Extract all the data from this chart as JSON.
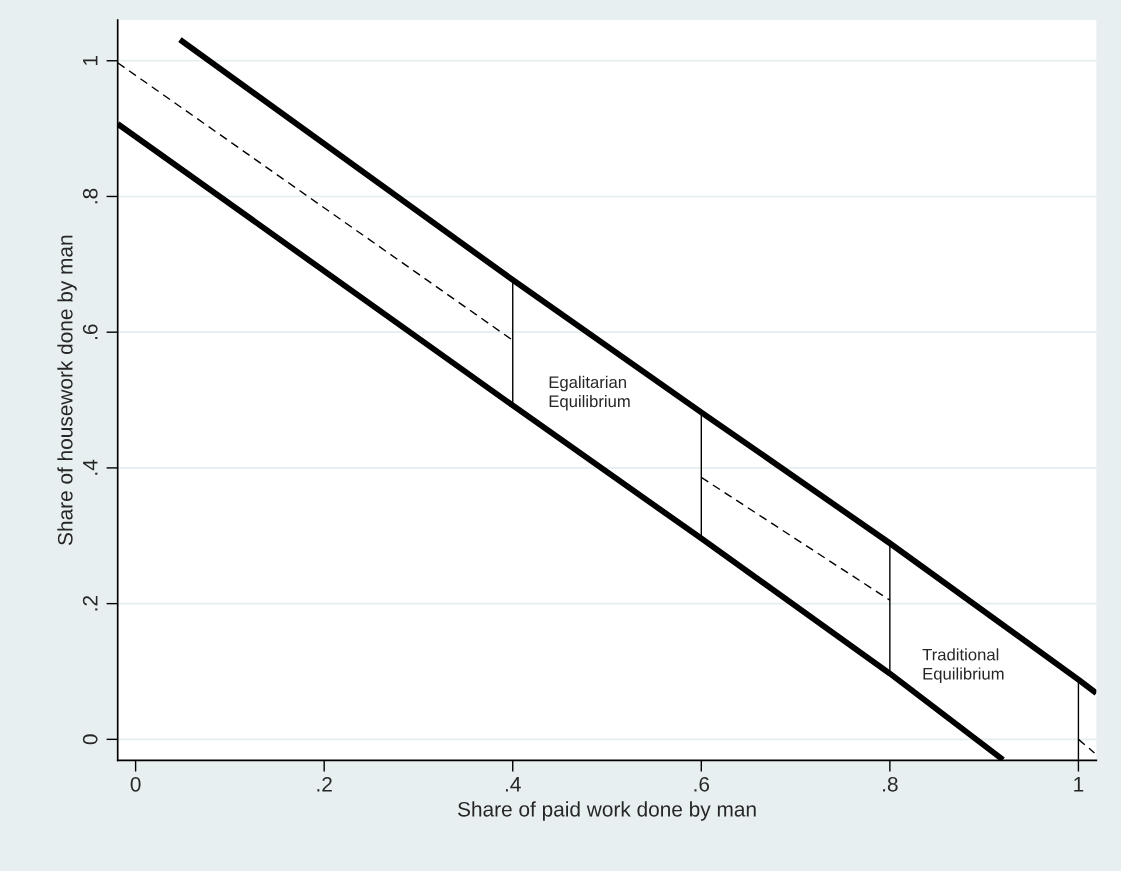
{
  "chart_data": {
    "type": "line",
    "xlabel": "Share of paid work done by man",
    "ylabel": "Share of housework done by man",
    "xlim": [
      -0.019,
      1.019
    ],
    "ylim": [
      -0.031,
      1.06
    ],
    "xticks": [
      {
        "value": 0,
        "label": "0"
      },
      {
        "value": 0.2,
        "label": ".2"
      },
      {
        "value": 0.4,
        "label": ".4"
      },
      {
        "value": 0.6,
        "label": ".6"
      },
      {
        "value": 0.8,
        "label": ".8"
      },
      {
        "value": 1,
        "label": "1"
      }
    ],
    "yticks": [
      {
        "value": 0,
        "label": "0"
      },
      {
        "value": 0.2,
        "label": ".2"
      },
      {
        "value": 0.4,
        "label": ".4"
      },
      {
        "value": 0.6,
        "label": ".6"
      },
      {
        "value": 0.8,
        "label": ".8"
      },
      {
        "value": 1,
        "label": "1"
      }
    ],
    "grid": "y",
    "marker": "none",
    "series": [
      {
        "color": "#000000",
        "line_style": "solid",
        "x": [
          0.047,
          0.4,
          0.6,
          0.8,
          1.0,
          1.019
        ],
        "values": [
          1.031,
          0.677,
          0.482,
          0.289,
          0.088,
          0.068
        ]
      },
      {
        "color": "#000000",
        "line_style": "solid",
        "x": [
          -0.019,
          0.4,
          0.6,
          0.8,
          0.92
        ],
        "values": [
          0.907,
          0.492,
          0.296,
          0.097,
          -0.03
        ]
      },
      {
        "color": "#000000",
        "line_style": "dashed",
        "x": [
          -0.019,
          0.4
        ],
        "values": [
          0.997,
          0.588
        ]
      },
      {
        "color": "#000000",
        "line_style": "dashed",
        "x": [
          0.6,
          0.8
        ],
        "values": [
          0.386,
          0.205
        ]
      },
      {
        "color": "#000000",
        "line_style": "dashed",
        "x": [
          1.0,
          1.017
        ],
        "values": [
          0.0,
          -0.02
        ]
      },
      {
        "color": "#000000",
        "line_style": "solid",
        "x": [
          0.4,
          0.4
        ],
        "values": [
          0.492,
          0.677
        ]
      },
      {
        "color": "#000000",
        "line_style": "solid",
        "x": [
          0.6,
          0.6
        ],
        "values": [
          0.296,
          0.482
        ]
      },
      {
        "color": "#000000",
        "line_style": "solid",
        "x": [
          0.8,
          0.8
        ],
        "values": [
          0.097,
          0.289
        ]
      },
      {
        "color": "#000000",
        "line_style": "solid",
        "x": [
          1.0,
          1.0
        ],
        "values": [
          -0.03,
          0.088
        ]
      }
    ],
    "annotations": [
      "Egalitarian\nEquilibrium",
      "Traditional\nEquilibrium"
    ]
  }
}
